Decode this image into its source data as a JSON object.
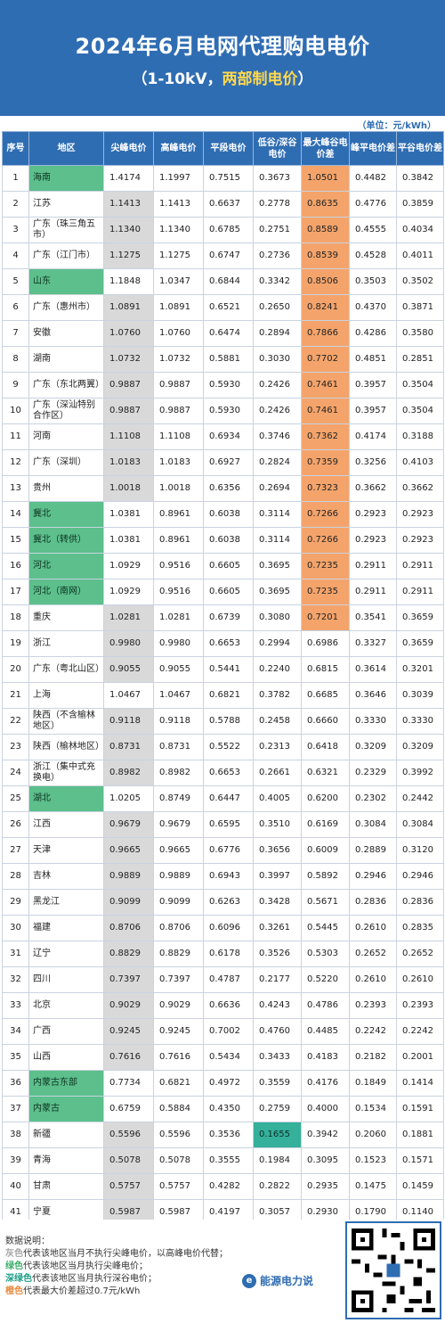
{
  "header": {
    "title": "2024年6月电网代理购电电价",
    "subtitle_prefix": "（1-10kV，",
    "subtitle_highlight": "两部制电价",
    "subtitle_suffix": "）"
  },
  "unit": "（单位：元/kWh）",
  "columns": [
    "序号",
    "地区",
    "尖峰电价",
    "高峰电价",
    "平段电价",
    "低谷/深谷电价",
    "最大峰谷电价差",
    "峰平电价差",
    "平谷电价差"
  ],
  "rows": [
    {
      "no": "1",
      "region": "海南",
      "region_style": "green",
      "jian": "1.4174",
      "gao": "1.1997",
      "ping": "0.7515",
      "gu": "0.3673",
      "gu_style": "",
      "diff": "1.0501",
      "diff_style": "orange",
      "fp": "0.4482",
      "pg": "0.3842"
    },
    {
      "no": "2",
      "region": "江苏",
      "region_style": "",
      "jian": "1.1413",
      "jian_style": "gray",
      "gao": "1.1413",
      "ping": "0.6637",
      "gu": "0.2778",
      "diff": "0.8635",
      "diff_style": "orange",
      "fp": "0.4776",
      "pg": "0.3859"
    },
    {
      "no": "3",
      "region": "广东（珠三角五市）",
      "region_style": "",
      "jian": "1.1340",
      "jian_style": "gray",
      "gao": "1.1340",
      "ping": "0.6785",
      "gu": "0.2751",
      "diff": "0.8589",
      "diff_style": "orange",
      "fp": "0.4555",
      "pg": "0.4034"
    },
    {
      "no": "4",
      "region": "广东（江门市）",
      "region_style": "",
      "jian": "1.1275",
      "jian_style": "gray",
      "gao": "1.1275",
      "ping": "0.6747",
      "gu": "0.2736",
      "diff": "0.8539",
      "diff_style": "orange",
      "fp": "0.4528",
      "pg": "0.4011"
    },
    {
      "no": "5",
      "region": "山东",
      "region_style": "green",
      "jian": "1.1848",
      "gao": "1.0347",
      "ping": "0.6844",
      "gu": "0.3342",
      "diff": "0.8506",
      "diff_style": "orange",
      "fp": "0.3503",
      "pg": "0.3502"
    },
    {
      "no": "6",
      "region": "广东（惠州市）",
      "region_style": "",
      "jian": "1.0891",
      "jian_style": "gray",
      "gao": "1.0891",
      "ping": "0.6521",
      "gu": "0.2650",
      "diff": "0.8241",
      "diff_style": "orange",
      "fp": "0.4370",
      "pg": "0.3871"
    },
    {
      "no": "7",
      "region": "安徽",
      "region_style": "",
      "jian": "1.0760",
      "jian_style": "gray",
      "gao": "1.0760",
      "ping": "0.6474",
      "gu": "0.2894",
      "diff": "0.7866",
      "diff_style": "orange",
      "fp": "0.4286",
      "pg": "0.3580"
    },
    {
      "no": "8",
      "region": "湖南",
      "region_style": "",
      "jian": "1.0732",
      "jian_style": "gray",
      "gao": "1.0732",
      "ping": "0.5881",
      "gu": "0.3030",
      "diff": "0.7702",
      "diff_style": "orange",
      "fp": "0.4851",
      "pg": "0.2851"
    },
    {
      "no": "9",
      "region": "广东（东北两翼）",
      "region_style": "",
      "jian": "0.9887",
      "jian_style": "gray",
      "gao": "0.9887",
      "ping": "0.5930",
      "gu": "0.2426",
      "diff": "0.7461",
      "diff_style": "orange",
      "fp": "0.3957",
      "pg": "0.3504"
    },
    {
      "no": "10",
      "region": "广东（深汕特别合作区）",
      "region_style": "",
      "jian": "0.9887",
      "jian_style": "gray",
      "gao": "0.9887",
      "ping": "0.5930",
      "gu": "0.2426",
      "diff": "0.7461",
      "diff_style": "orange",
      "fp": "0.3957",
      "pg": "0.3504"
    },
    {
      "no": "11",
      "region": "河南",
      "region_style": "",
      "jian": "1.1108",
      "jian_style": "gray",
      "gao": "1.1108",
      "ping": "0.6934",
      "gu": "0.3746",
      "diff": "0.7362",
      "diff_style": "orange",
      "fp": "0.4174",
      "pg": "0.3188"
    },
    {
      "no": "12",
      "region": "广东（深圳）",
      "region_style": "",
      "jian": "1.0183",
      "jian_style": "gray",
      "gao": "1.0183",
      "ping": "0.6927",
      "gu": "0.2824",
      "diff": "0.7359",
      "diff_style": "orange",
      "fp": "0.3256",
      "pg": "0.4103"
    },
    {
      "no": "13",
      "region": "贵州",
      "region_style": "",
      "jian": "1.0018",
      "jian_style": "gray",
      "gao": "1.0018",
      "ping": "0.6356",
      "gu": "0.2694",
      "diff": "0.7323",
      "diff_style": "orange",
      "fp": "0.3662",
      "pg": "0.3662"
    },
    {
      "no": "14",
      "region": "冀北",
      "region_style": "green",
      "jian": "1.0381",
      "gao": "0.8961",
      "ping": "0.6038",
      "gu": "0.3114",
      "diff": "0.7266",
      "diff_style": "orange",
      "fp": "0.2923",
      "pg": "0.2923"
    },
    {
      "no": "15",
      "region": "冀北（转供）",
      "region_style": "green",
      "jian": "1.0381",
      "gao": "0.8961",
      "ping": "0.6038",
      "gu": "0.3114",
      "diff": "0.7266",
      "diff_style": "orange",
      "fp": "0.2923",
      "pg": "0.2923"
    },
    {
      "no": "16",
      "region": "河北",
      "region_style": "green",
      "jian": "1.0929",
      "gao": "0.9516",
      "ping": "0.6605",
      "gu": "0.3695",
      "diff": "0.7235",
      "diff_style": "orange",
      "fp": "0.2911",
      "pg": "0.2911"
    },
    {
      "no": "17",
      "region": "河北（南网）",
      "region_style": "green",
      "jian": "1.0929",
      "gao": "0.9516",
      "ping": "0.6605",
      "gu": "0.3695",
      "diff": "0.7235",
      "diff_style": "orange",
      "fp": "0.2911",
      "pg": "0.2911"
    },
    {
      "no": "18",
      "region": "重庆",
      "region_style": "",
      "jian": "1.0281",
      "jian_style": "gray",
      "gao": "1.0281",
      "ping": "0.6739",
      "gu": "0.3080",
      "diff": "0.7201",
      "diff_style": "orange",
      "fp": "0.3541",
      "pg": "0.3659"
    },
    {
      "no": "19",
      "region": "浙江",
      "region_style": "",
      "jian": "0.9980",
      "jian_style": "gray",
      "gao": "0.9980",
      "ping": "0.6653",
      "gu": "0.2994",
      "diff": "0.6986",
      "fp": "0.3327",
      "pg": "0.3659"
    },
    {
      "no": "20",
      "region": "广东（粤北山区）",
      "region_style": "",
      "jian": "0.9055",
      "jian_style": "gray",
      "gao": "0.9055",
      "ping": "0.5441",
      "gu": "0.2240",
      "diff": "0.6815",
      "fp": "0.3614",
      "pg": "0.3201"
    },
    {
      "no": "21",
      "region": "上海",
      "region_style": "",
      "jian": "1.0467",
      "gao": "1.0467",
      "ping": "0.6821",
      "gu": "0.3782",
      "diff": "0.6685",
      "fp": "0.3646",
      "pg": "0.3039"
    },
    {
      "no": "22",
      "region": "陕西（不含榆林地区）",
      "region_style": "",
      "jian": "0.9118",
      "jian_style": "gray",
      "gao": "0.9118",
      "ping": "0.5788",
      "gu": "0.2458",
      "diff": "0.6660",
      "fp": "0.3330",
      "pg": "0.3330"
    },
    {
      "no": "23",
      "region": "陕西（榆林地区）",
      "region_style": "",
      "jian": "0.8731",
      "jian_style": "gray",
      "gao": "0.8731",
      "ping": "0.5522",
      "gu": "0.2313",
      "diff": "0.6418",
      "fp": "0.3209",
      "pg": "0.3209"
    },
    {
      "no": "24",
      "region": "浙江（集中式充换电）",
      "region_style": "",
      "jian": "0.8982",
      "jian_style": "gray",
      "gao": "0.8982",
      "ping": "0.6653",
      "gu": "0.2661",
      "diff": "0.6321",
      "fp": "0.2329",
      "pg": "0.3992"
    },
    {
      "no": "25",
      "region": "湖北",
      "region_style": "green",
      "jian": "1.0205",
      "gao": "0.8749",
      "ping": "0.6447",
      "gu": "0.4005",
      "diff": "0.6200",
      "fp": "0.2302",
      "pg": "0.2442"
    },
    {
      "no": "26",
      "region": "江西",
      "region_style": "",
      "jian": "0.9679",
      "jian_style": "gray",
      "gao": "0.9679",
      "ping": "0.6595",
      "gu": "0.3510",
      "diff": "0.6169",
      "fp": "0.3084",
      "pg": "0.3084"
    },
    {
      "no": "27",
      "region": "天津",
      "region_style": "",
      "jian": "0.9665",
      "jian_style": "gray",
      "gao": "0.9665",
      "ping": "0.6776",
      "gu": "0.3656",
      "diff": "0.6009",
      "fp": "0.2889",
      "pg": "0.3120"
    },
    {
      "no": "28",
      "region": "吉林",
      "region_style": "",
      "jian": "0.9889",
      "jian_style": "gray",
      "gao": "0.9889",
      "ping": "0.6943",
      "gu": "0.3997",
      "diff": "0.5892",
      "fp": "0.2946",
      "pg": "0.2946"
    },
    {
      "no": "29",
      "region": "黑龙江",
      "region_style": "",
      "jian": "0.9099",
      "jian_style": "gray",
      "gao": "0.9099",
      "ping": "0.6263",
      "gu": "0.3428",
      "diff": "0.5671",
      "fp": "0.2836",
      "pg": "0.2836"
    },
    {
      "no": "30",
      "region": "福建",
      "region_style": "",
      "jian": "0.8706",
      "jian_style": "gray",
      "gao": "0.8706",
      "ping": "0.6096",
      "gu": "0.3261",
      "diff": "0.5445",
      "fp": "0.2610",
      "pg": "0.2835"
    },
    {
      "no": "31",
      "region": "辽宁",
      "region_style": "",
      "jian": "0.8829",
      "jian_style": "gray",
      "gao": "0.8829",
      "ping": "0.6178",
      "gu": "0.3526",
      "diff": "0.5303",
      "fp": "0.2652",
      "pg": "0.2652"
    },
    {
      "no": "32",
      "region": "四川",
      "region_style": "",
      "jian": "0.7397",
      "jian_style": "gray",
      "gao": "0.7397",
      "ping": "0.4787",
      "gu": "0.2177",
      "diff": "0.5220",
      "fp": "0.2610",
      "pg": "0.2610"
    },
    {
      "no": "33",
      "region": "北京",
      "region_style": "",
      "jian": "0.9029",
      "jian_style": "gray",
      "gao": "0.9029",
      "ping": "0.6636",
      "gu": "0.4243",
      "diff": "0.4786",
      "fp": "0.2393",
      "pg": "0.2393"
    },
    {
      "no": "34",
      "region": "广西",
      "region_style": "",
      "jian": "0.9245",
      "jian_style": "gray",
      "gao": "0.9245",
      "ping": "0.7002",
      "gu": "0.4760",
      "diff": "0.4485",
      "fp": "0.2242",
      "pg": "0.2242"
    },
    {
      "no": "35",
      "region": "山西",
      "region_style": "",
      "jian": "0.7616",
      "jian_style": "gray",
      "gao": "0.7616",
      "ping": "0.5434",
      "gu": "0.3433",
      "diff": "0.4183",
      "fp": "0.2182",
      "pg": "0.2001"
    },
    {
      "no": "36",
      "region": "内蒙古东部",
      "region_style": "green",
      "jian": "0.7734",
      "gao": "0.6821",
      "ping": "0.4972",
      "gu": "0.3559",
      "diff": "0.4176",
      "fp": "0.1849",
      "pg": "0.1414"
    },
    {
      "no": "37",
      "region": "内蒙古",
      "region_style": "green",
      "jian": "0.6759",
      "gao": "0.5884",
      "ping": "0.4350",
      "gu": "0.2759",
      "diff": "0.4000",
      "fp": "0.1534",
      "pg": "0.1591"
    },
    {
      "no": "38",
      "region": "新疆",
      "region_style": "",
      "jian": "0.5596",
      "jian_style": "gray",
      "gao": "0.5596",
      "ping": "0.3536",
      "gu": "0.1655",
      "gu_style": "teal",
      "diff": "0.3942",
      "fp": "0.2060",
      "pg": "0.1881"
    },
    {
      "no": "39",
      "region": "青海",
      "region_style": "",
      "jian": "0.5078",
      "jian_style": "gray",
      "gao": "0.5078",
      "ping": "0.3555",
      "gu": "0.1984",
      "diff": "0.3095",
      "fp": "0.1523",
      "pg": "0.1571"
    },
    {
      "no": "40",
      "region": "甘肃",
      "region_style": "",
      "jian": "0.5757",
      "jian_style": "gray",
      "gao": "0.5757",
      "ping": "0.4282",
      "gu": "0.2822",
      "diff": "0.2935",
      "fp": "0.1475",
      "pg": "0.1459"
    },
    {
      "no": "41",
      "region": "宁夏",
      "region_style": "",
      "jian": "0.5987",
      "jian_style": "gray",
      "gao": "0.5987",
      "ping": "0.4197",
      "gu": "0.3057",
      "diff": "0.2930",
      "fp": "0.1790",
      "pg": "0.1140"
    }
  ],
  "notes": {
    "heading": "数据说明：",
    "items": [
      {
        "key": "灰色",
        "key_style": "k-gray",
        "text": "代表该地区当月不执行尖峰电价，以高峰电价代替；"
      },
      {
        "key": "绿色",
        "key_style": "k-green",
        "text": "代表该地区当月执行尖峰电价；"
      },
      {
        "key": "深绿色",
        "key_style": "k-teal",
        "text": "代表该地区当月执行深谷电价；"
      },
      {
        "key": "橙色",
        "key_style": "k-orange",
        "text": "代表最大价差超过0.7元/kWh"
      }
    ]
  },
  "brand": {
    "name": "能源电力说",
    "logo_icon": "e-logo-icon"
  },
  "colors": {
    "header_bg": "#2f6db3",
    "gray": "#d9d9d9",
    "green": "#5cbf8c",
    "teal": "#35b09a",
    "orange": "#f4a46b"
  }
}
